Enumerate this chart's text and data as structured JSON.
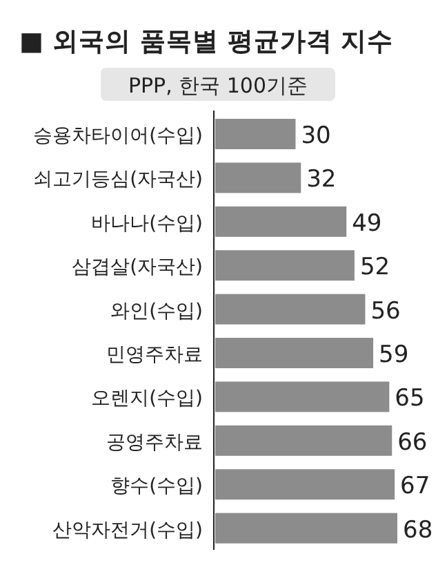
{
  "chart_data": {
    "type": "bar",
    "orientation": "horizontal",
    "title": "■ 외국의 품목별 평균가격 지수",
    "subtitle": "PPP, 한국 100기준",
    "categories": [
      "승용차타이어(수입)",
      "쇠고기등심(자국산)",
      "바나나(수입)",
      "삼겹살(자국산)",
      "와인(수입)",
      "민영주차료",
      "오렌지(수입)",
      "공영주차료",
      "향수(수입)",
      "산악자전거(수입)"
    ],
    "values": [
      30,
      32,
      49,
      52,
      56,
      59,
      65,
      66,
      67,
      68
    ],
    "color": "#8c8c8c",
    "data_labels": true
  }
}
